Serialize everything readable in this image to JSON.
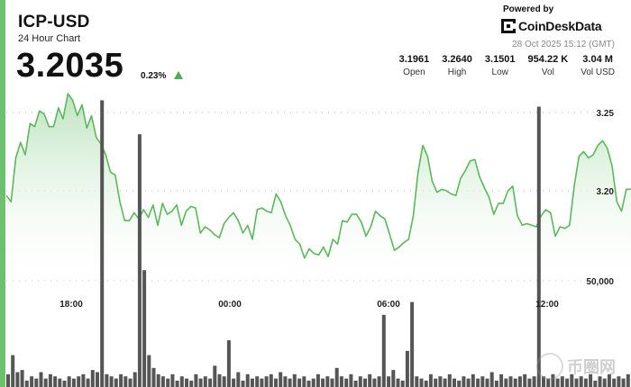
{
  "header": {
    "pair": "ICP-USD",
    "subtitle": "24 Hour Chart",
    "price": "3.2035",
    "change": "0.23%",
    "powered_by": "Powered by",
    "brand": "CoinDeskData",
    "timestamp": "28 Oct 2025 15:12 (GMT)"
  },
  "stats": [
    {
      "value": "3.1961",
      "label": "Open"
    },
    {
      "value": "3.2640",
      "label": "High"
    },
    {
      "value": "3.1501",
      "label": "Low"
    },
    {
      "value": "954.22 K",
      "label": "Vol"
    },
    {
      "value": "3.04 M",
      "label": "Vol USD"
    }
  ],
  "watermark": "币圈网",
  "colors": {
    "line": "#5cb85c",
    "fill_top": "#b9e2bb",
    "volume": "#555555",
    "accent": "#6cc06e"
  },
  "chart_data": [
    {
      "type": "area",
      "x_ticks": [
        "18:00",
        "00:00",
        "06:00",
        "12:00"
      ],
      "y_ticks": [
        {
          "label": "3.25",
          "value": 3.25
        },
        {
          "label": "3.20",
          "value": 3.2
        }
      ],
      "ylim": [
        3.15,
        3.27
      ],
      "grid": true,
      "values": [
        3.197,
        3.193,
        3.221,
        3.231,
        3.223,
        3.243,
        3.241,
        3.251,
        3.249,
        3.241,
        3.241,
        3.253,
        3.246,
        3.262,
        3.258,
        3.248,
        3.255,
        3.24,
        3.248,
        3.234,
        3.23,
        3.223,
        3.212,
        3.21,
        3.193,
        3.181,
        3.181,
        3.186,
        3.182,
        3.188,
        3.183,
        3.191,
        3.178,
        3.192,
        3.185,
        3.187,
        3.191,
        3.178,
        3.187,
        3.19,
        3.189,
        3.173,
        3.177,
        3.175,
        3.172,
        3.17,
        3.179,
        3.183,
        3.186,
        3.181,
        3.173,
        3.178,
        3.169,
        3.188,
        3.189,
        3.187,
        3.186,
        3.198,
        3.193,
        3.184,
        3.178,
        3.169,
        3.166,
        3.157,
        3.163,
        3.16,
        3.159,
        3.164,
        3.158,
        3.169,
        3.166,
        3.181,
        3.18,
        3.185,
        3.185,
        3.18,
        3.171,
        3.177,
        3.187,
        3.184,
        3.182,
        3.172,
        3.162,
        3.164,
        3.167,
        3.169,
        3.184,
        3.212,
        3.229,
        3.222,
        3.206,
        3.199,
        3.201,
        3.2,
        3.198,
        3.197,
        3.208,
        3.213,
        3.219,
        3.22,
        3.209,
        3.202,
        3.196,
        3.185,
        3.192,
        3.192,
        3.2,
        3.203,
        3.184,
        3.178,
        3.179,
        3.178,
        3.177,
        3.184,
        3.188,
        3.186,
        3.171,
        3.177,
        3.176,
        3.178,
        3.203,
        3.222,
        3.225,
        3.221,
        3.223,
        3.229,
        3.232,
        3.227,
        3.216,
        3.193,
        3.187,
        3.201,
        3.201
      ]
    },
    {
      "type": "bar",
      "name": "Volume",
      "y_ticks": [
        {
          "label": "50,000",
          "value": 50000
        }
      ],
      "ylim": [
        0,
        150000
      ],
      "values": [
        6000,
        15000,
        7000,
        8000,
        3000,
        5000,
        4000,
        7000,
        4000,
        6000,
        5000,
        4000,
        3000,
        5000,
        4000,
        5000,
        6000,
        4000,
        8000,
        7000,
        135000,
        6000,
        5000,
        4000,
        6000,
        5000,
        4000,
        7000,
        119000,
        55000,
        15000,
        9000,
        6000,
        5000,
        4000,
        6000,
        3000,
        5000,
        4000,
        3000,
        6000,
        4000,
        5000,
        4000,
        10000,
        6000,
        5000,
        22000,
        4000,
        7000,
        3000,
        6000,
        4000,
        5000,
        4000,
        5000,
        6000,
        4000,
        7000,
        5000,
        4000,
        6000,
        4000,
        5000,
        3000,
        4000,
        6000,
        4000,
        5000,
        4000,
        9000,
        5000,
        4000,
        6000,
        3000,
        5000,
        4000,
        6000,
        4000,
        5000,
        34000,
        5000,
        8000,
        4000,
        3000,
        17000,
        40000,
        5000,
        4000,
        3000,
        6000,
        4000,
        5000,
        4000,
        6000,
        4000,
        3000,
        5000,
        4000,
        6000,
        4000,
        5000,
        4000,
        7000,
        3000,
        6000,
        4000,
        5000,
        4000,
        5000,
        6000,
        4000,
        5000,
        132000,
        5000,
        4000,
        6000,
        4000,
        5000,
        4000,
        6000,
        4000,
        5000,
        4000,
        6000,
        3000,
        5000,
        4000,
        6000,
        4000,
        5000,
        4000,
        6000
      ]
    }
  ]
}
